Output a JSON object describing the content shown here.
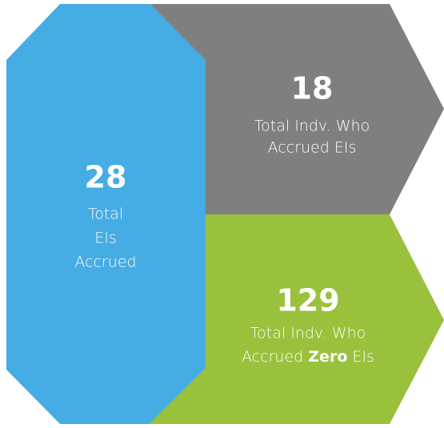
{
  "panels": [
    {
      "value": 28,
      "lines": [
        "Total",
        "EIs",
        "Accrued"
      ]
    },
    {
      "value": 18,
      "lines": [
        "Total Indv. Who",
        "Accrued EIs"
      ]
    },
    {
      "value": 129,
      "lines": [
        "Total Indv. Who"
      ],
      "last_line": [
        "Accrued",
        "Zero",
        "EIs"
      ]
    }
  ]
}
